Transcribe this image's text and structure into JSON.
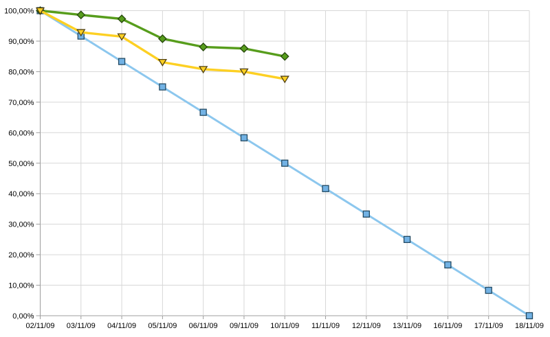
{
  "chart_data": {
    "type": "line",
    "title": "",
    "legend": "none",
    "grid": true,
    "background": "#ffffff",
    "grid_color": "#d7d7d7",
    "axis_color": "#9c9c9c",
    "categories": [
      "02/11/09",
      "03/11/09",
      "04/11/09",
      "05/11/09",
      "06/11/09",
      "09/11/09",
      "10/11/09",
      "11/11/09",
      "12/11/09",
      "13/11/09",
      "16/11/09",
      "17/11/09",
      "18/11/09"
    ],
    "y_axis": {
      "min": 0,
      "max": 100,
      "tick_step": 10,
      "tick_labels_top_to_bottom": [
        "100,00%",
        "90,00%",
        "80,00%",
        "70,00%",
        "60,00%",
        "50,00%",
        "40,00%",
        "30,00%",
        "20,00%",
        "10,00%",
        "0,00%"
      ]
    },
    "series": [
      {
        "name": "blue-squares-ideal-line",
        "marker": "square",
        "line_color": "#8cc7ee",
        "line_width": 3,
        "marker_fill": "#72b2e4",
        "marker_stroke": "#234a63",
        "values": [
          100,
          91.67,
          83.33,
          75,
          66.67,
          58.33,
          50,
          41.67,
          33.33,
          25,
          16.67,
          8.33,
          0
        ]
      },
      {
        "name": "green-diamonds-line",
        "marker": "diamond",
        "line_color": "#579d1c",
        "line_width": 3.4,
        "marker_fill": "#579d1c",
        "marker_stroke": "#25470b",
        "values": [
          100,
          98.6,
          97.3,
          90.8,
          88.1,
          87.6,
          85.0
        ]
      },
      {
        "name": "yellow-triangles-line",
        "marker": "triangle-down",
        "line_color": "#fdd023",
        "line_width": 3.4,
        "marker_fill": "#fdd023",
        "marker_stroke": "#4f4013",
        "values": [
          100,
          92.9,
          91.5,
          83.1,
          80.8,
          80.0,
          77.6
        ]
      }
    ]
  }
}
